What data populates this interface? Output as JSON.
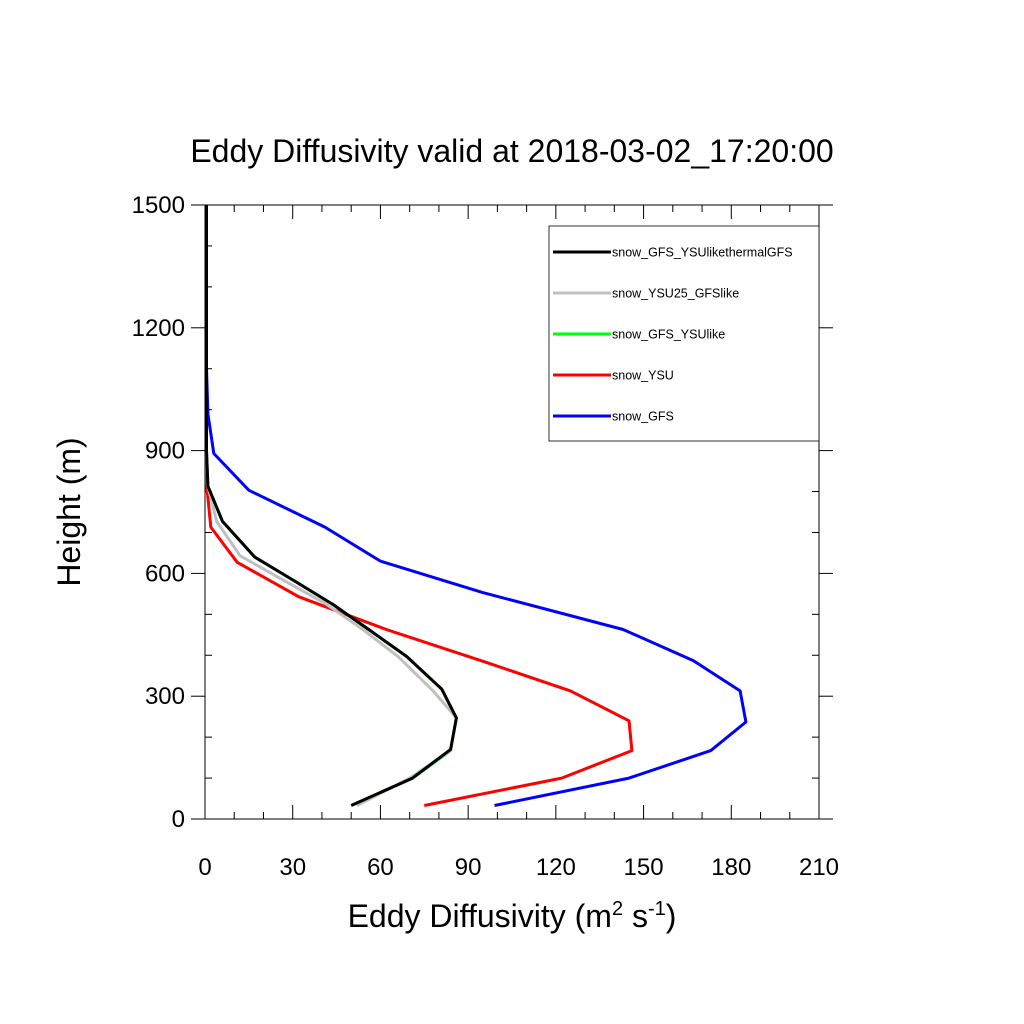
{
  "chart_data": {
    "type": "line",
    "title": "Eddy Diffusivity valid at 2018-03-02_17:20:00",
    "xlabel": {
      "base": "Eddy Diffusivity (m",
      "sup1": "2",
      "mid": " s",
      "sup2": "-1",
      "end": ")"
    },
    "ylabel": "Height (m)",
    "xlim": [
      0,
      210
    ],
    "ylim": [
      0,
      1500
    ],
    "xticks": [
      0,
      30,
      60,
      90,
      120,
      150,
      180,
      210
    ],
    "yticks": [
      0,
      300,
      600,
      900,
      1200,
      1500
    ],
    "grid": false,
    "legend_position": "top-right",
    "series": [
      {
        "name": "snow_GFS",
        "color": "#0000ff",
        "points": [
          [
            99,
            33
          ],
          [
            145,
            100
          ],
          [
            173,
            167
          ],
          [
            185,
            237
          ],
          [
            183,
            313
          ],
          [
            167,
            387
          ],
          [
            143,
            463
          ],
          [
            95,
            553
          ],
          [
            60,
            630
          ],
          [
            41,
            713
          ],
          [
            15,
            803
          ],
          [
            3,
            893
          ],
          [
            1,
            990
          ],
          [
            0.5,
            1100
          ],
          [
            0.5,
            1300
          ],
          [
            0.5,
            1500
          ]
        ]
      },
      {
        "name": "snow_YSU",
        "color": "#ff0000",
        "points": [
          [
            75,
            33
          ],
          [
            122,
            100
          ],
          [
            146,
            167
          ],
          [
            145,
            240
          ],
          [
            125,
            313
          ],
          [
            96,
            383
          ],
          [
            62,
            463
          ],
          [
            32,
            543
          ],
          [
            11,
            627
          ],
          [
            2,
            713
          ],
          [
            0.5,
            820
          ],
          [
            0.5,
            900
          ],
          [
            0.5,
            1100
          ],
          [
            0.5,
            1300
          ],
          [
            0.5,
            1500
          ]
        ]
      },
      {
        "name": "snow_GFS_YSUlike",
        "color": "#00ff00",
        "points": [
          [
            50,
            33
          ],
          [
            71,
            100
          ],
          [
            84,
            167
          ],
          [
            86,
            247
          ],
          [
            81,
            317
          ],
          [
            69,
            397
          ],
          [
            56,
            463
          ],
          [
            44,
            523
          ],
          [
            31,
            580
          ],
          [
            17,
            640
          ],
          [
            6,
            727
          ],
          [
            1,
            813
          ],
          [
            0.5,
            900
          ],
          [
            0.5,
            1100
          ],
          [
            0.5,
            1300
          ],
          [
            0.5,
            1500
          ]
        ]
      },
      {
        "name": "snow_YSU25_GFSlike",
        "color": "#c0c0c0",
        "points": [
          [
            52,
            33
          ],
          [
            70,
            100
          ],
          [
            84,
            167
          ],
          [
            86,
            247
          ],
          [
            78,
            313
          ],
          [
            66,
            397
          ],
          [
            54,
            463
          ],
          [
            41,
            527
          ],
          [
            27,
            583
          ],
          [
            12,
            643
          ],
          [
            4,
            727
          ],
          [
            1,
            813
          ],
          [
            0.5,
            900
          ],
          [
            0.5,
            1100
          ],
          [
            0.5,
            1300
          ],
          [
            0.5,
            1500
          ]
        ]
      },
      {
        "name": "snow_GFS_YSUlikethermalGFS",
        "color": "#000000",
        "points": [
          [
            50,
            33
          ],
          [
            71,
            100
          ],
          [
            84,
            170
          ],
          [
            86,
            247
          ],
          [
            81,
            317
          ],
          [
            69,
            397
          ],
          [
            56,
            463
          ],
          [
            44,
            523
          ],
          [
            31,
            580
          ],
          [
            17,
            640
          ],
          [
            6,
            727
          ],
          [
            1,
            813
          ],
          [
            0.5,
            900
          ],
          [
            0.5,
            1100
          ],
          [
            0.5,
            1300
          ],
          [
            0.5,
            1500
          ]
        ]
      }
    ],
    "legend_order": [
      "snow_GFS_YSUlikethermalGFS",
      "snow_YSU25_GFSlike",
      "snow_GFS_YSUlike",
      "snow_YSU",
      "snow_GFS"
    ]
  }
}
